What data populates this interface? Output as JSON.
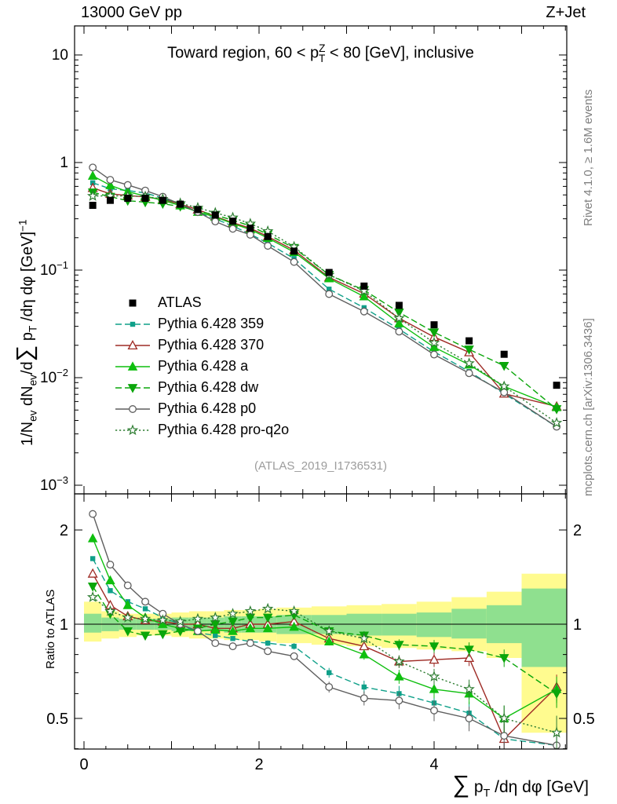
{
  "header": {
    "left": "13000 GeV pp",
    "right": "Z+Jet"
  },
  "side_labels": {
    "rivet": "Rivet 4.1.0, ≥ 1.6M events",
    "mcplots": "mcplots.cern.ch [arXiv:1306.3436]"
  },
  "watermark": "(ATLAS_2019_I1736531)",
  "ratio_axis_label": "Ratio to ATLAS",
  "title_parts": [
    {
      "t": "Toward region, 60 < p"
    },
    {
      "t": "Z",
      "m": "sup"
    },
    {
      "t": "T",
      "m": "sub",
      "o": 1
    },
    {
      "t": " < 80 [GeV], inclusive"
    }
  ],
  "ylabel_parts": [
    {
      "t": "1/N"
    },
    {
      "t": "ev",
      "m": "sub"
    },
    {
      "t": " dN"
    },
    {
      "t": "ev",
      "m": "sub"
    },
    {
      "t": "/d"
    },
    {
      "t": "∑",
      "m": "big"
    },
    {
      "t": " p"
    },
    {
      "t": "T",
      "m": "sub"
    },
    {
      "t": " /dη dφ  [GeV]"
    },
    {
      "t": "−1",
      "m": "sup"
    }
  ],
  "xlabel_parts": [
    {
      "t": "∑",
      "m": "big"
    },
    {
      "t": " p"
    },
    {
      "t": "T",
      "m": "sub"
    },
    {
      "t": " /dη dφ [GeV]"
    }
  ],
  "chart_data": {
    "type": "line",
    "title": "Toward region, 60 < pTZ < 80 [GeV], inclusive",
    "xlabel": "∑ pT /dη dφ [GeV]",
    "ylabel": "1/Nev dNev/d∑ pT /dη dφ [GeV]^-1",
    "ratio_ylabel": "Ratio to ATLAS",
    "legend_position": "left-middle",
    "main_yscale": "log",
    "ratio_yscale": "log",
    "axes": {
      "x_ticks_labeled": [
        0,
        2,
        4
      ],
      "main_y_ticks": [
        10,
        1,
        0.1,
        0.01,
        0.001
      ],
      "main_ylim": [
        0.00083,
        18.6
      ],
      "ratio_y_ticks": [
        2,
        1,
        0.5
      ],
      "ratio_ylim": [
        0.4,
        2.6
      ],
      "xlim": [
        -0.1,
        5.52
      ]
    },
    "x": [
      0.1,
      0.3,
      0.5,
      0.7,
      0.9,
      1.1,
      1.3,
      1.5,
      1.7,
      1.9,
      2.1,
      2.4,
      2.8,
      3.2,
      3.6,
      4.0,
      4.4,
      4.8,
      5.4
    ],
    "bin_edges": [
      0,
      0.2,
      0.4,
      0.6,
      0.8,
      1.0,
      1.2,
      1.4,
      1.6,
      1.8,
      2.0,
      2.2,
      2.6,
      3.0,
      3.4,
      3.8,
      4.2,
      4.6,
      5.0,
      5.8
    ],
    "atlas": {
      "name": "ATLAS",
      "color": "#000000",
      "marker": "square-filled",
      "values": [
        0.4,
        0.445,
        0.465,
        0.465,
        0.445,
        0.41,
        0.365,
        0.325,
        0.285,
        0.245,
        0.205,
        0.15,
        0.095,
        0.071,
        0.047,
        0.031,
        0.022,
        0.0165,
        0.0085
      ]
    },
    "series": [
      {
        "name": "Pythia 6.428 359",
        "color": "#0FA089",
        "line": "dashed",
        "marker": "square-filled-sm",
        "values": [
          0.648,
          0.57,
          0.549,
          0.521,
          0.467,
          0.41,
          0.343,
          0.299,
          0.257,
          0.216,
          0.178,
          0.128,
          0.0665,
          0.0447,
          0.0282,
          0.0174,
          0.0114,
          0.0071,
          0.0035
        ],
        "ratio": [
          1.62,
          1.28,
          1.18,
          1.12,
          1.05,
          1.0,
          0.94,
          0.92,
          0.9,
          0.88,
          0.87,
          0.85,
          0.7,
          0.63,
          0.6,
          0.56,
          0.52,
          0.43,
          0.41
        ]
      },
      {
        "name": "Pythia 6.428 370",
        "color": "#9E2B25",
        "line": "solid",
        "marker": "triangle-open",
        "values": [
          0.58,
          0.512,
          0.493,
          0.479,
          0.454,
          0.41,
          0.365,
          0.315,
          0.276,
          0.245,
          0.205,
          0.153,
          0.0855,
          0.0604,
          0.0357,
          0.0239,
          0.0172,
          0.0071,
          0.0054
        ],
        "ratio": [
          1.45,
          1.15,
          1.06,
          1.03,
          1.02,
          1.0,
          1.0,
          0.97,
          0.97,
          1.0,
          1.0,
          1.02,
          0.9,
          0.85,
          0.76,
          0.77,
          0.78,
          0.43,
          0.63
        ]
      },
      {
        "name": "Pythia 6.428 a",
        "color": "#0FBF0F",
        "line": "solid",
        "marker": "triangle-filled",
        "values": [
          0.752,
          0.614,
          0.535,
          0.488,
          0.445,
          0.398,
          0.347,
          0.312,
          0.271,
          0.238,
          0.199,
          0.147,
          0.0836,
          0.0568,
          0.032,
          0.0192,
          0.0132,
          0.0083,
          0.0053
        ],
        "ratio": [
          1.88,
          1.38,
          1.15,
          1.05,
          1.0,
          0.97,
          0.95,
          0.96,
          0.95,
          0.97,
          0.97,
          0.98,
          0.88,
          0.8,
          0.68,
          0.62,
          0.6,
          0.5,
          0.62
        ]
      },
      {
        "name": "Pythia 6.428 dw",
        "color": "#0AA60A",
        "line": "dashed",
        "marker": "triangle-down-filled",
        "values": [
          0.528,
          0.481,
          0.442,
          0.428,
          0.414,
          0.39,
          0.354,
          0.325,
          0.291,
          0.257,
          0.215,
          0.161,
          0.0903,
          0.0653,
          0.0404,
          0.0264,
          0.0183,
          0.0129,
          0.0051
        ],
        "ratio": [
          1.32,
          1.08,
          0.95,
          0.92,
          0.93,
          0.95,
          0.97,
          1.0,
          1.02,
          1.05,
          1.05,
          1.07,
          0.95,
          0.92,
          0.86,
          0.85,
          0.83,
          0.78,
          0.6
        ]
      },
      {
        "name": "Pythia 6.428 p0",
        "color": "#5F5F5F",
        "line": "solid",
        "marker": "circle-open",
        "values": [
          0.9,
          0.69,
          0.618,
          0.549,
          0.481,
          0.41,
          0.347,
          0.283,
          0.242,
          0.213,
          0.168,
          0.119,
          0.0599,
          0.0412,
          0.0268,
          0.0164,
          0.011,
          0.0073,
          0.0035
        ],
        "ratio": [
          2.25,
          1.55,
          1.33,
          1.18,
          1.08,
          1.0,
          0.95,
          0.87,
          0.85,
          0.87,
          0.82,
          0.79,
          0.63,
          0.58,
          0.57,
          0.53,
          0.5,
          0.44,
          0.41
        ]
      },
      {
        "name": "Pythia 6.428 pro-q2o",
        "color": "#2E7D32",
        "line": "dotted",
        "marker": "star-open",
        "values": [
          0.488,
          0.49,
          0.488,
          0.484,
          0.458,
          0.418,
          0.38,
          0.341,
          0.308,
          0.27,
          0.23,
          0.165,
          0.0903,
          0.0639,
          0.0357,
          0.0211,
          0.0136,
          0.0083,
          0.0038
        ],
        "ratio": [
          1.22,
          1.1,
          1.05,
          1.04,
          1.03,
          1.02,
          1.04,
          1.05,
          1.08,
          1.1,
          1.12,
          1.1,
          0.95,
          0.9,
          0.76,
          0.68,
          0.62,
          0.5,
          0.45
        ]
      }
    ],
    "ratio_err": [
      0.01,
      0.01,
      0.01,
      0.01,
      0.01,
      0.01,
      0.012,
      0.012,
      0.015,
      0.015,
      0.018,
      0.02,
      0.025,
      0.03,
      0.035,
      0.04,
      0.045,
      0.05,
      0.06
    ],
    "bands": {
      "yellow": {
        "color": "#FFFB8F",
        "lo": [
          0.88,
          0.9,
          0.91,
          0.92,
          0.92,
          0.91,
          0.9,
          0.9,
          0.89,
          0.89,
          0.88,
          0.87,
          0.86,
          0.85,
          0.84,
          0.83,
          0.82,
          0.78,
          0.45
        ],
        "hi": [
          1.18,
          1.1,
          1.08,
          1.08,
          1.08,
          1.09,
          1.1,
          1.1,
          1.11,
          1.11,
          1.12,
          1.13,
          1.14,
          1.15,
          1.16,
          1.18,
          1.22,
          1.27,
          1.45
        ]
      },
      "green": {
        "color": "#8FE08F",
        "lo": [
          0.94,
          0.95,
          0.96,
          0.96,
          0.96,
          0.95,
          0.95,
          0.95,
          0.94,
          0.94,
          0.94,
          0.93,
          0.93,
          0.92,
          0.92,
          0.91,
          0.9,
          0.87,
          0.73
        ],
        "hi": [
          1.08,
          1.05,
          1.04,
          1.04,
          1.04,
          1.05,
          1.05,
          1.05,
          1.06,
          1.06,
          1.06,
          1.07,
          1.07,
          1.08,
          1.08,
          1.09,
          1.12,
          1.15,
          1.3
        ]
      }
    }
  }
}
